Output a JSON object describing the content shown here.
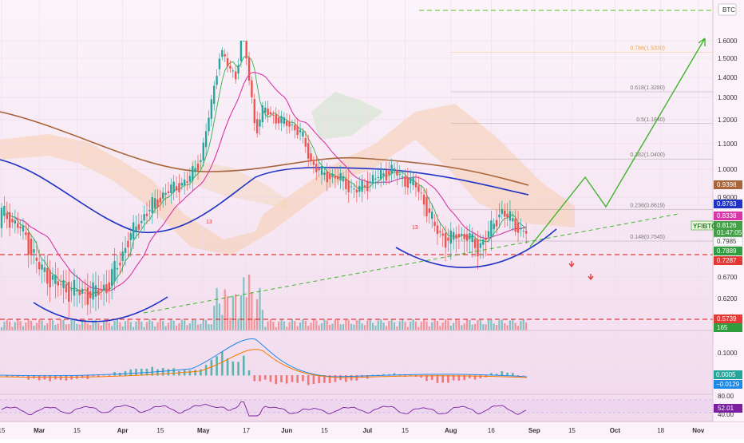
{
  "chart_data": {
    "type": "line",
    "symbol": "YFIBTC",
    "price_scale_currency": "BTC",
    "y_axis_ticks": [
      "1.6000",
      "1.5000",
      "1.4000",
      "1.3000",
      "1.2000",
      "1.1000",
      "1.0000",
      "0.9000",
      "0.6700",
      "0.6200"
    ],
    "x_axis_ticks": [
      {
        "label": "15",
        "day": 0
      },
      {
        "label": "Mar",
        "day": 14
      },
      {
        "label": "15",
        "day": 28
      },
      {
        "label": "Apr",
        "day": 45
      },
      {
        "label": "15",
        "day": 59
      },
      {
        "label": "May",
        "day": 75
      },
      {
        "label": "17",
        "day": 91
      },
      {
        "label": "Jun",
        "day": 106
      },
      {
        "label": "15",
        "day": 120
      },
      {
        "label": "Jul",
        "day": 136
      },
      {
        "label": "15",
        "day": 150
      },
      {
        "label": "Aug",
        "day": 167
      },
      {
        "label": "16",
        "day": 182
      },
      {
        "label": "Sep",
        "day": 198
      },
      {
        "label": "15",
        "day": 212
      },
      {
        "label": "Oct",
        "day": 228
      },
      {
        "label": "18",
        "day": 245
      },
      {
        "label": "Nov",
        "day": 259
      }
    ],
    "price_badges": [
      {
        "value": "0.9398",
        "color": "#a8663a"
      },
      {
        "value": "0.8783",
        "color": "#1f34c4"
      },
      {
        "value": "0.8338",
        "color": "#d636a8"
      },
      {
        "value": "0.8126",
        "color": "#43a047"
      },
      {
        "value": "01:47:05",
        "color": "#43a047"
      },
      {
        "value": "0.7985",
        "color": "#ffffff"
      },
      {
        "value": "0.7889",
        "color": "#2e9e3e"
      },
      {
        "value": "0.7287",
        "color": "#e53935"
      },
      {
        "value": "0.5739",
        "color": "#e53935"
      },
      {
        "value": "165",
        "color": "#2e9e3e"
      }
    ],
    "fib_levels": [
      {
        "label": "0.786(1.5330)",
        "value": 1.533,
        "color": "#f2a23c"
      },
      {
        "label": "0.618(1.3280)",
        "value": 1.328,
        "color": "#7a7a7a"
      },
      {
        "label": "0.5(1.1840)",
        "value": 1.184,
        "color": "#7a7a7a"
      },
      {
        "label": "0.382(1.0400)",
        "value": 1.04,
        "color": "#7a7a7a"
      },
      {
        "label": "0.236(0.8619)",
        "value": 0.8619,
        "color": "#7a7a7a"
      },
      {
        "label": "0.148(0.7545)",
        "value": 0.7545,
        "color": "#7a7a7a"
      }
    ],
    "horizontal_levels": [
      {
        "value": 0.7287,
        "color": "#e53935",
        "style": "dashed"
      },
      {
        "value": 0.5739,
        "color": "#e53935",
        "style": "dashed"
      }
    ],
    "macd_ticks": [
      "0.1000",
      "0.0000"
    ],
    "macd_badges": [
      {
        "value": "0.0005",
        "color": "#26a69a"
      },
      {
        "value": "−0.0129",
        "color": "#1e88e5"
      }
    ],
    "rsi_ticks": [
      "80.00",
      "40.00"
    ],
    "rsi_badge": {
      "value": "52.01",
      "color": "#7b1fa2"
    },
    "annotations": [
      "13",
      "13"
    ],
    "grid": true,
    "legend": "none"
  },
  "colors": {
    "background": "#f7e9f4",
    "up": "#26a69a",
    "down": "#ef5350",
    "ma_brown": "#a8663a",
    "ma_blue": "#1f34c4",
    "ma_pink": "#d636a8",
    "projection": "#3fb52a",
    "support_curve": "#1f34c4"
  }
}
